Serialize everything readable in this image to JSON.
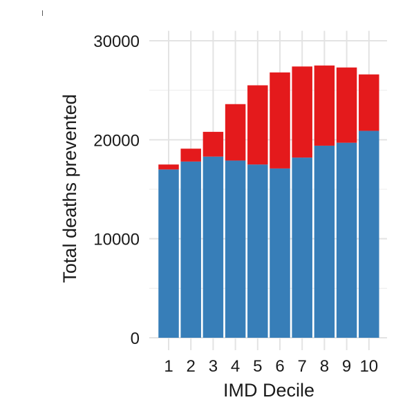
{
  "chart_data": {
    "type": "bar",
    "stacked": true,
    "categories": [
      "1",
      "2",
      "3",
      "4",
      "5",
      "6",
      "7",
      "8",
      "9",
      "10"
    ],
    "series": [
      {
        "color": "#377eb8",
        "values": [
          17000,
          17800,
          18300,
          17900,
          17500,
          17100,
          18200,
          19400,
          19700,
          20900
        ]
      },
      {
        "color": "#e41a1c",
        "values": [
          500,
          1300,
          2500,
          5700,
          8000,
          9700,
          9200,
          8100,
          7600,
          5700
        ]
      }
    ],
    "xlabel": "IMD Decile",
    "ylabel": "Total deaths prevented",
    "ylim": [
      0,
      31000
    ],
    "yticks": [
      0,
      10000,
      20000,
      30000
    ],
    "grid": true,
    "legend": "none"
  }
}
